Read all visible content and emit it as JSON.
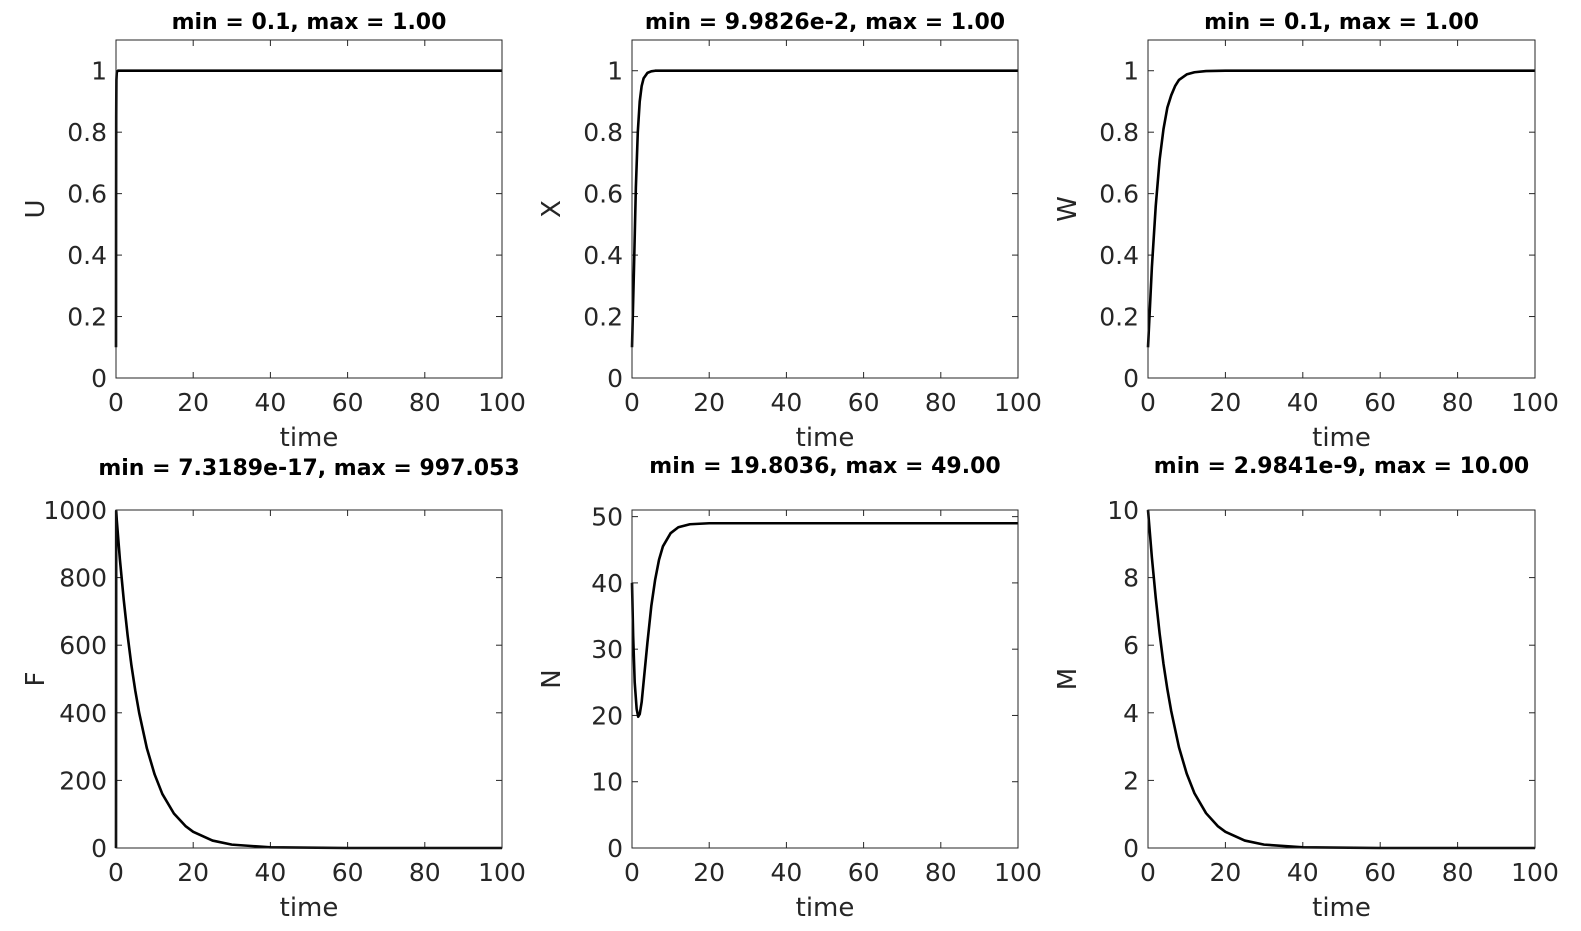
{
  "chart_data": [
    {
      "type": "line",
      "title": "min = 0.1, max = 1.00",
      "xlabel": "time",
      "ylabel": "U",
      "xlim": [
        0,
        100
      ],
      "ylim": [
        0,
        1.1
      ],
      "xticks": [
        0,
        20,
        40,
        60,
        80,
        100
      ],
      "xtick_labels": [
        "0",
        "20",
        "40",
        "60",
        "80",
        "100"
      ],
      "yticks": [
        0,
        0.2,
        0.4,
        0.6,
        0.8,
        1
      ],
      "ytick_labels": [
        "0",
        "0.2",
        "0.4",
        "0.6",
        "0.8",
        "1"
      ],
      "grid": false,
      "series": [
        {
          "x": [
            0,
            0.02,
            0.05,
            0.1,
            0.2,
            0.5,
            1,
            2,
            5,
            10,
            20,
            40,
            60,
            80,
            100
          ],
          "y": [
            0.1,
            0.55,
            0.85,
            0.97,
            0.995,
            1,
            1,
            1,
            1,
            1,
            1,
            1,
            1,
            1,
            1
          ]
        }
      ]
    },
    {
      "type": "line",
      "title": "min = 9.9826e-2, max = 1.00",
      "xlabel": "time",
      "ylabel": "X",
      "xlim": [
        0,
        100
      ],
      "ylim": [
        0,
        1.1
      ],
      "xticks": [
        0,
        20,
        40,
        60,
        80,
        100
      ],
      "xtick_labels": [
        "0",
        "20",
        "40",
        "60",
        "80",
        "100"
      ],
      "yticks": [
        0,
        0.2,
        0.4,
        0.6,
        0.8,
        1
      ],
      "ytick_labels": [
        "0",
        "0.2",
        "0.4",
        "0.6",
        "0.8",
        "1"
      ],
      "grid": false,
      "series": [
        {
          "x": [
            0,
            0.5,
            1,
            1.5,
            2,
            2.5,
            3,
            4,
            5,
            6,
            8,
            10,
            20,
            40,
            60,
            80,
            100
          ],
          "y": [
            0.1,
            0.35,
            0.62,
            0.8,
            0.9,
            0.95,
            0.975,
            0.993,
            0.998,
            1,
            1,
            1,
            1,
            1,
            1,
            1,
            1
          ]
        }
      ]
    },
    {
      "type": "line",
      "title": "min = 0.1, max = 1.00",
      "xlabel": "time",
      "ylabel": "W",
      "xlim": [
        0,
        100
      ],
      "ylim": [
        0,
        1.1
      ],
      "xticks": [
        0,
        20,
        40,
        60,
        80,
        100
      ],
      "xtick_labels": [
        "0",
        "20",
        "40",
        "60",
        "80",
        "100"
      ],
      "yticks": [
        0,
        0.2,
        0.4,
        0.6,
        0.8,
        1
      ],
      "ytick_labels": [
        "0",
        "0.2",
        "0.4",
        "0.6",
        "0.8",
        "1"
      ],
      "grid": false,
      "series": [
        {
          "x": [
            0,
            1,
            2,
            3,
            4,
            5,
            6,
            7,
            8,
            10,
            12,
            15,
            20,
            30,
            40,
            60,
            80,
            100
          ],
          "y": [
            0.1,
            0.36,
            0.56,
            0.71,
            0.81,
            0.88,
            0.92,
            0.95,
            0.97,
            0.988,
            0.995,
            0.999,
            1,
            1,
            1,
            1,
            1,
            1
          ]
        }
      ]
    },
    {
      "type": "line",
      "title": "min = 7.3189e-17, max = 997.053",
      "xlabel": "time",
      "ylabel": "F",
      "xlim": [
        0,
        100
      ],
      "ylim": [
        0,
        1000
      ],
      "xticks": [
        0,
        20,
        40,
        60,
        80,
        100
      ],
      "xtick_labels": [
        "0",
        "20",
        "40",
        "60",
        "80",
        "100"
      ],
      "yticks": [
        0,
        200,
        400,
        600,
        800,
        1000
      ],
      "ytick_labels": [
        "0",
        "200",
        "400",
        "600",
        "800",
        "1000"
      ],
      "grid": false,
      "series": [
        {
          "x": [
            0,
            0.05,
            0.2,
            1,
            2,
            3,
            4,
            5,
            6,
            8,
            10,
            12,
            15,
            18,
            20,
            25,
            30,
            40,
            60,
            80,
            100
          ],
          "y": [
            0,
            997.053,
            970,
            855,
            735,
            630,
            540,
            465,
            400,
            295,
            218,
            160,
            102,
            65,
            48,
            22,
            10,
            2,
            0,
            0,
            0
          ]
        }
      ]
    },
    {
      "type": "line",
      "title": "min = 19.8036, max = 49.00",
      "xlabel": "time",
      "ylabel": "N",
      "xlim": [
        0,
        100
      ],
      "ylim": [
        0,
        51
      ],
      "xticks": [
        0,
        20,
        40,
        60,
        80,
        100
      ],
      "xtick_labels": [
        "0",
        "20",
        "40",
        "60",
        "80",
        "100"
      ],
      "yticks": [
        0,
        10,
        20,
        30,
        40,
        50
      ],
      "ytick_labels": [
        "0",
        "10",
        "20",
        "30",
        "40",
        "50"
      ],
      "grid": false,
      "series": [
        {
          "x": [
            0,
            0.3,
            0.7,
            1.2,
            1.6,
            2,
            2.5,
            3,
            4,
            5,
            6,
            7,
            8,
            10,
            12,
            15,
            20,
            30,
            50,
            70,
            100
          ],
          "y": [
            40,
            32,
            25,
            21,
            19.8036,
            20.2,
            22,
            25,
            31,
            36.5,
            40.5,
            43.5,
            45.5,
            47.5,
            48.4,
            48.85,
            49,
            49,
            49,
            49,
            49
          ]
        }
      ]
    },
    {
      "type": "line",
      "title": "min = 2.9841e-9, max = 10.00",
      "xlabel": "time",
      "ylabel": "M",
      "xlim": [
        0,
        100
      ],
      "ylim": [
        0,
        10
      ],
      "xticks": [
        0,
        20,
        40,
        60,
        80,
        100
      ],
      "xtick_labels": [
        "0",
        "20",
        "40",
        "60",
        "80",
        "100"
      ],
      "yticks": [
        0,
        2,
        4,
        6,
        8,
        10
      ],
      "ytick_labels": [
        "0",
        "2",
        "4",
        "6",
        "8",
        "10"
      ],
      "grid": false,
      "series": [
        {
          "x": [
            0,
            1,
            2,
            3,
            4,
            5,
            6,
            8,
            10,
            12,
            15,
            18,
            20,
            25,
            30,
            40,
            60,
            80,
            100
          ],
          "y": [
            10,
            8.6,
            7.4,
            6.35,
            5.45,
            4.7,
            4.05,
            2.98,
            2.2,
            1.62,
            1.03,
            0.65,
            0.48,
            0.22,
            0.1,
            0.02,
            0,
            0,
            0
          ]
        }
      ]
    }
  ]
}
